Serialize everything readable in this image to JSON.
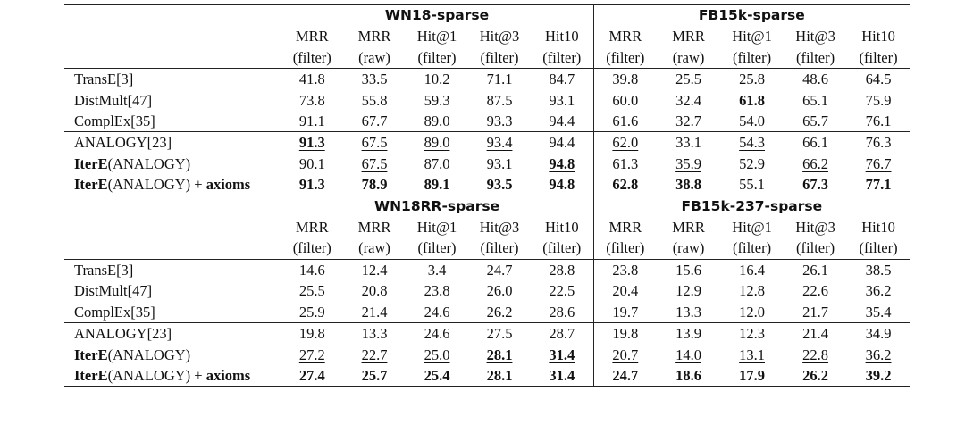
{
  "blocks": [
    {
      "groups": [
        "WN18-sparse",
        "FB15k-sparse"
      ],
      "metrics_top": [
        "MRR",
        "MRR",
        "Hit@1",
        "Hit@3",
        "Hit10",
        "MRR",
        "MRR",
        "Hit@1",
        "Hit@3",
        "Hit10"
      ],
      "metrics_bottom": [
        "(filter)",
        "(raw)",
        "(filter)",
        "(filter)",
        "(filter)",
        "(filter)",
        "(raw)",
        "(filter)",
        "(filter)",
        "(filter)"
      ],
      "rows": [
        {
          "model_bold": "",
          "model_rest": "TransE[3]",
          "model_suffix": "",
          "values": [
            "41.8",
            "33.5",
            "10.2",
            "71.1",
            "84.7",
            "39.8",
            "25.5",
            "25.8",
            "48.6",
            "64.5"
          ],
          "bold": [
            0,
            0,
            0,
            0,
            0,
            0,
            0,
            0,
            0,
            0
          ],
          "underline": [
            0,
            0,
            0,
            0,
            0,
            0,
            0,
            0,
            0,
            0
          ]
        },
        {
          "model_bold": "",
          "model_rest": "DistMult[47]",
          "model_suffix": "",
          "values": [
            "73.8",
            "55.8",
            "59.3",
            "87.5",
            "93.1",
            "60.0",
            "32.4",
            "61.8",
            "65.1",
            "75.9"
          ],
          "bold": [
            0,
            0,
            0,
            0,
            0,
            0,
            0,
            1,
            0,
            0
          ],
          "underline": [
            0,
            0,
            0,
            0,
            0,
            0,
            0,
            0,
            0,
            0
          ]
        },
        {
          "model_bold": "",
          "model_rest": "ComplEx[35]",
          "model_suffix": "",
          "values": [
            "91.1",
            "67.7",
            "89.0",
            "93.3",
            "94.4",
            "61.6",
            "32.7",
            "54.0",
            "65.7",
            "76.1"
          ],
          "bold": [
            0,
            0,
            0,
            0,
            0,
            0,
            0,
            0,
            0,
            0
          ],
          "underline": [
            0,
            0,
            0,
            0,
            0,
            0,
            0,
            0,
            0,
            0
          ]
        },
        {
          "model_bold": "",
          "model_rest": "ANALOGY[23]",
          "model_suffix": "",
          "values": [
            "91.3",
            "67.5",
            "89.0",
            "93.4",
            "94.4",
            "62.0",
            "33.1",
            "54.3",
            "66.1",
            "76.3"
          ],
          "bold": [
            1,
            0,
            0,
            0,
            0,
            0,
            0,
            0,
            0,
            0
          ],
          "underline": [
            1,
            1,
            1,
            1,
            0,
            1,
            0,
            1,
            0,
            0
          ]
        },
        {
          "model_bold": "IterE",
          "model_rest": "(ANALOGY)",
          "model_suffix": "",
          "values": [
            "90.1",
            "67.5",
            "87.0",
            "93.1",
            "94.8",
            "61.3",
            "35.9",
            "52.9",
            "66.2",
            "76.7"
          ],
          "bold": [
            0,
            0,
            0,
            0,
            1,
            0,
            0,
            0,
            0,
            0
          ],
          "underline": [
            0,
            1,
            0,
            0,
            1,
            0,
            1,
            0,
            1,
            1
          ]
        },
        {
          "model_bold": "IterE",
          "model_rest": "(ANALOGY) + ",
          "model_suffix": "axioms",
          "values": [
            "91.3",
            "78.9",
            "89.1",
            "93.5",
            "94.8",
            "62.8",
            "38.8",
            "55.1",
            "67.3",
            "77.1"
          ],
          "bold": [
            1,
            1,
            1,
            1,
            1,
            1,
            1,
            0,
            1,
            1
          ],
          "underline": [
            0,
            0,
            0,
            0,
            0,
            0,
            0,
            0,
            0,
            0
          ]
        }
      ]
    },
    {
      "groups": [
        "WN18RR-sparse",
        "FB15k-237-sparse"
      ],
      "metrics_top": [
        "MRR",
        "MRR",
        "Hit@1",
        "Hit@3",
        "Hit10",
        "MRR",
        "MRR",
        "Hit@1",
        "Hit@3",
        "Hit10"
      ],
      "metrics_bottom": [
        "(filter)",
        "(raw)",
        "(filter)",
        "(filter)",
        "(filter)",
        "(filter)",
        "(raw)",
        "(filter)",
        "(filter)",
        "(filter)"
      ],
      "rows": [
        {
          "model_bold": "",
          "model_rest": "TransE[3]",
          "model_suffix": "",
          "values": [
            "14.6",
            "12.4",
            "3.4",
            "24.7",
            "28.8",
            "23.8",
            "15.6",
            "16.4",
            "26.1",
            "38.5"
          ],
          "bold": [
            0,
            0,
            0,
            0,
            0,
            0,
            0,
            0,
            0,
            0
          ],
          "underline": [
            0,
            0,
            0,
            0,
            0,
            0,
            0,
            0,
            0,
            0
          ]
        },
        {
          "model_bold": "",
          "model_rest": "DistMult[47]",
          "model_suffix": "",
          "values": [
            "25.5",
            "20.8",
            "23.8",
            "26.0",
            "22.5",
            "20.4",
            "12.9",
            "12.8",
            "22.6",
            "36.2"
          ],
          "bold": [
            0,
            0,
            0,
            0,
            0,
            0,
            0,
            0,
            0,
            0
          ],
          "underline": [
            0,
            0,
            0,
            0,
            0,
            0,
            0,
            0,
            0,
            0
          ]
        },
        {
          "model_bold": "",
          "model_rest": "ComplEx[35]",
          "model_suffix": "",
          "values": [
            "25.9",
            "21.4",
            "24.6",
            "26.2",
            "28.6",
            "19.7",
            "13.3",
            "12.0",
            "21.7",
            "35.4"
          ],
          "bold": [
            0,
            0,
            0,
            0,
            0,
            0,
            0,
            0,
            0,
            0
          ],
          "underline": [
            0,
            0,
            0,
            0,
            0,
            0,
            0,
            0,
            0,
            0
          ]
        },
        {
          "model_bold": "",
          "model_rest": "ANALOGY[23]",
          "model_suffix": "",
          "values": [
            "19.8",
            "13.3",
            "24.6",
            "27.5",
            "28.7",
            "19.8",
            "13.9",
            "12.3",
            "21.4",
            "34.9"
          ],
          "bold": [
            0,
            0,
            0,
            0,
            0,
            0,
            0,
            0,
            0,
            0
          ],
          "underline": [
            0,
            0,
            0,
            0,
            0,
            0,
            0,
            0,
            0,
            0
          ]
        },
        {
          "model_bold": "IterE",
          "model_rest": "(ANALOGY)",
          "model_suffix": "",
          "values": [
            "27.2",
            "22.7",
            "25.0",
            "28.1",
            "31.4",
            "20.7",
            "14.0",
            "13.1",
            "22.8",
            "36.2"
          ],
          "bold": [
            0,
            0,
            0,
            1,
            1,
            0,
            0,
            0,
            0,
            0
          ],
          "underline": [
            1,
            1,
            1,
            1,
            1,
            1,
            1,
            1,
            1,
            1
          ]
        },
        {
          "model_bold": "IterE",
          "model_rest": "(ANALOGY) + ",
          "model_suffix": "axioms",
          "values": [
            "27.4",
            "25.7",
            "25.4",
            "28.1",
            "31.4",
            "24.7",
            "18.6",
            "17.9",
            "26.2",
            "39.2"
          ],
          "bold": [
            1,
            1,
            1,
            1,
            1,
            1,
            1,
            1,
            1,
            1
          ],
          "underline": [
            0,
            0,
            0,
            0,
            0,
            0,
            0,
            0,
            0,
            0
          ]
        }
      ]
    }
  ]
}
